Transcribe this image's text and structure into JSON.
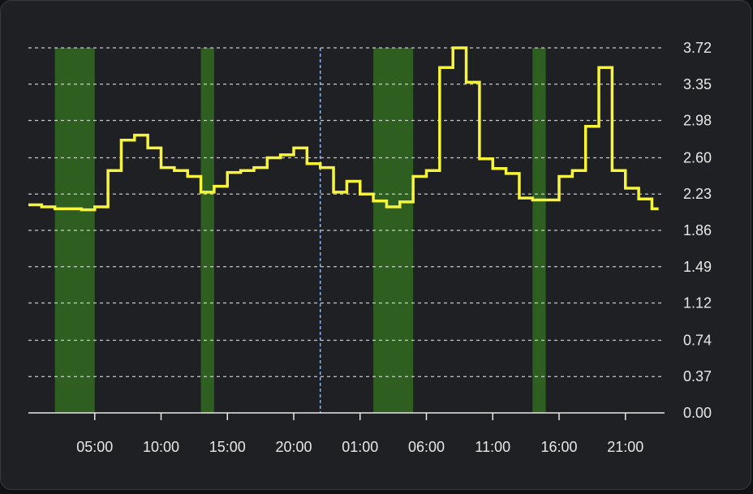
{
  "chart_data": {
    "type": "line",
    "step": true,
    "x_unit": "hours since first 00:00 (two days, hourly)",
    "x": [
      0,
      1,
      2,
      3,
      4,
      5,
      6,
      7,
      8,
      9,
      10,
      11,
      12,
      13,
      14,
      15,
      16,
      17,
      18,
      19,
      20,
      21,
      22,
      23,
      24,
      25,
      26,
      27,
      28,
      29,
      30,
      31,
      32,
      33,
      34,
      35,
      36,
      37,
      38,
      39,
      40,
      41,
      42,
      43,
      44,
      45,
      46,
      47
    ],
    "values": [
      2.12,
      2.1,
      2.08,
      2.08,
      2.07,
      2.1,
      2.47,
      2.78,
      2.83,
      2.7,
      2.5,
      2.47,
      2.41,
      2.25,
      2.31,
      2.45,
      2.47,
      2.5,
      2.6,
      2.63,
      2.7,
      2.54,
      2.5,
      2.25,
      2.36,
      2.23,
      2.16,
      2.1,
      2.15,
      2.41,
      2.47,
      3.52,
      3.72,
      3.37,
      2.59,
      2.49,
      2.44,
      2.19,
      2.17,
      2.17,
      2.41,
      2.47,
      2.92,
      3.52,
      2.47,
      2.29,
      2.18,
      2.08
    ],
    "x_ticks": [
      "05:00",
      "10:00",
      "15:00",
      "20:00",
      "01:00",
      "06:00",
      "11:00",
      "16:00",
      "21:00"
    ],
    "x_tick_hours": [
      5,
      10,
      15,
      20,
      25,
      30,
      35,
      40,
      45
    ],
    "y_ticks": [
      "0.00",
      "0.37",
      "0.74",
      "1.12",
      "1.49",
      "1.86",
      "2.23",
      "2.60",
      "2.98",
      "3.35",
      "3.72"
    ],
    "ylim": [
      0,
      3.72
    ],
    "xlim": [
      0,
      48
    ],
    "highlight_ranges": [
      [
        2,
        5
      ],
      [
        13,
        14
      ],
      [
        26,
        29
      ],
      [
        38,
        39
      ]
    ],
    "now_marker_hour": 22,
    "grid": true,
    "colors": {
      "line": "#f7f43c",
      "highlight": "#2f5e21",
      "grid": "#e8e8e8",
      "now_marker": "#8fb4f0",
      "background": "#1f2023"
    }
  }
}
